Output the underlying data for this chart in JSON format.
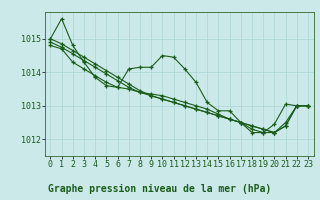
{
  "title": "Graphe pression niveau de la mer (hPa)",
  "background_color": "#cce9e9",
  "grid_color": "#aad4d4",
  "line_color": "#1a5c1a",
  "ylim": [
    1011.5,
    1015.8
  ],
  "yticks": [
    1012,
    1013,
    1014,
    1015
  ],
  "xticks": [
    0,
    1,
    2,
    3,
    4,
    5,
    6,
    7,
    8,
    9,
    10,
    11,
    12,
    13,
    14,
    15,
    16,
    17,
    18,
    19,
    20,
    21,
    22,
    23
  ],
  "series": [
    [
      1015.0,
      1015.6,
      1014.8,
      1014.3,
      1013.85,
      1013.6,
      1013.55,
      1014.1,
      1014.15,
      1014.15,
      1014.5,
      1014.45,
      1014.1,
      1013.7,
      1013.1,
      1012.85,
      1012.85,
      1012.5,
      1012.2,
      1012.2,
      1012.45,
      1013.05,
      1013.0,
      1013.0
    ],
    [
      1014.8,
      1014.7,
      1014.3,
      1014.1,
      1013.9,
      1013.7,
      1013.55,
      1013.5,
      1013.4,
      1013.35,
      1013.3,
      1013.2,
      1013.1,
      1013.0,
      1012.9,
      1012.75,
      1012.6,
      1012.5,
      1012.3,
      1012.2,
      1012.2,
      1012.5,
      1013.0,
      1013.0
    ],
    [
      1015.0,
      1014.85,
      1014.65,
      1014.45,
      1014.25,
      1014.05,
      1013.85,
      1013.65,
      1013.45,
      1013.3,
      1013.2,
      1013.1,
      1013.0,
      1012.9,
      1012.8,
      1012.7,
      1012.6,
      1012.5,
      1012.4,
      1012.3,
      1012.2,
      1012.4,
      1013.0,
      1013.0
    ],
    [
      1014.9,
      1014.75,
      1014.55,
      1014.35,
      1014.15,
      1013.95,
      1013.75,
      1013.55,
      1013.4,
      1013.3,
      1013.2,
      1013.1,
      1013.0,
      1012.9,
      1012.8,
      1012.7,
      1012.6,
      1012.5,
      1012.4,
      1012.3,
      1012.2,
      1012.4,
      1013.0,
      1013.0
    ]
  ],
  "marker": "+",
  "marker_size": 3,
  "line_width": 0.8,
  "tick_fontsize": 6,
  "title_fontsize": 7,
  "spine_color": "#336633"
}
